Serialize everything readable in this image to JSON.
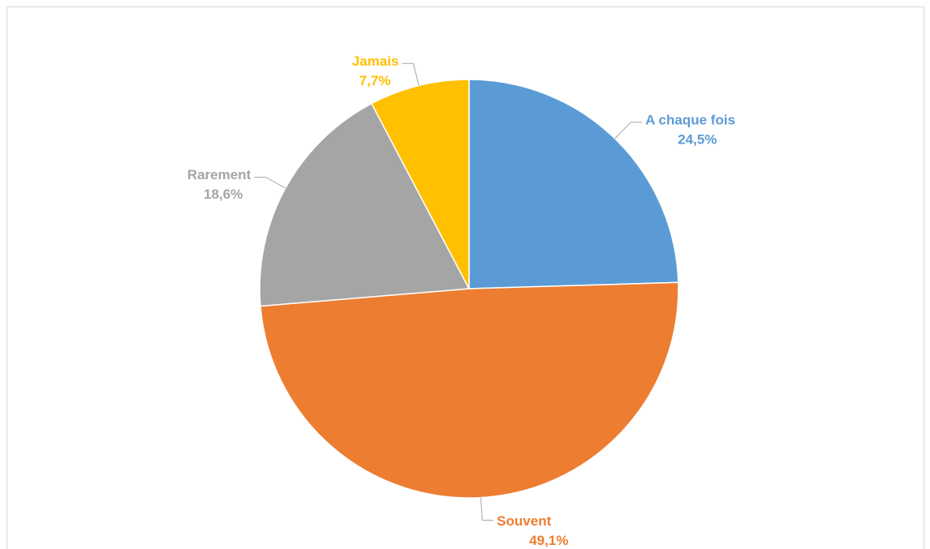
{
  "chart_data": {
    "type": "pie",
    "categories": [
      "A chaque fois",
      "Souvent",
      "Rarement",
      "Jamais"
    ],
    "values": [
      24.5,
      49.1,
      18.6,
      7.7
    ],
    "value_labels": [
      "24,5%",
      "49,1%",
      "18,6%",
      "7,7%"
    ],
    "colors": [
      "#5b9bd5",
      "#ed7d31",
      "#a5a5a5",
      "#ffc000"
    ]
  }
}
